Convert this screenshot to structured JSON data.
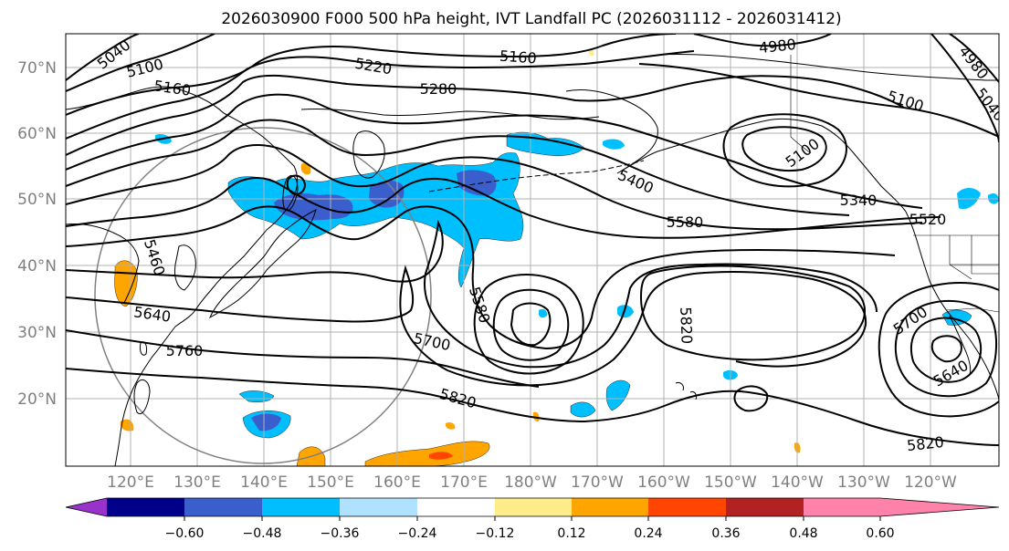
{
  "title": "2026030900 F000 500 hPa height, IVT Landfall PC (2026031112 - 2026031412)",
  "lat_labels": [
    "70°N",
    "60°N",
    "50°N",
    "40°N",
    "30°N",
    "20°N"
  ],
  "lon_labels": [
    "120°E",
    "130°E",
    "140°E",
    "150°E",
    "160°E",
    "170°E",
    "180°W",
    "170°W",
    "160°W",
    "150°W",
    "140°W",
    "130°W",
    "120°W"
  ],
  "contour_labels": [
    "5040",
    "5100",
    "5160",
    "5220",
    "5160",
    "4980",
    "4980",
    "5040",
    "5280",
    "5100",
    "5100",
    "5400",
    "5340",
    "5520",
    "5580",
    "5460",
    "5640",
    "5760",
    "5700",
    "5580",
    "5820",
    "5700",
    "5640",
    "5820",
    "5820"
  ],
  "colorbar": {
    "ticks": [
      "−0.60",
      "−0.48",
      "−0.36",
      "−0.24",
      "−0.12",
      "0.12",
      "0.24",
      "0.36",
      "0.48",
      "0.60"
    ],
    "colors": [
      "#9932cc",
      "#00008b",
      "#3a5fcd",
      "#00bfff",
      "#b0e2ff",
      "#ffffff",
      "#ffec8b",
      "#ffa500",
      "#ff4500",
      "#b22222",
      "#ff82ab"
    ]
  }
}
